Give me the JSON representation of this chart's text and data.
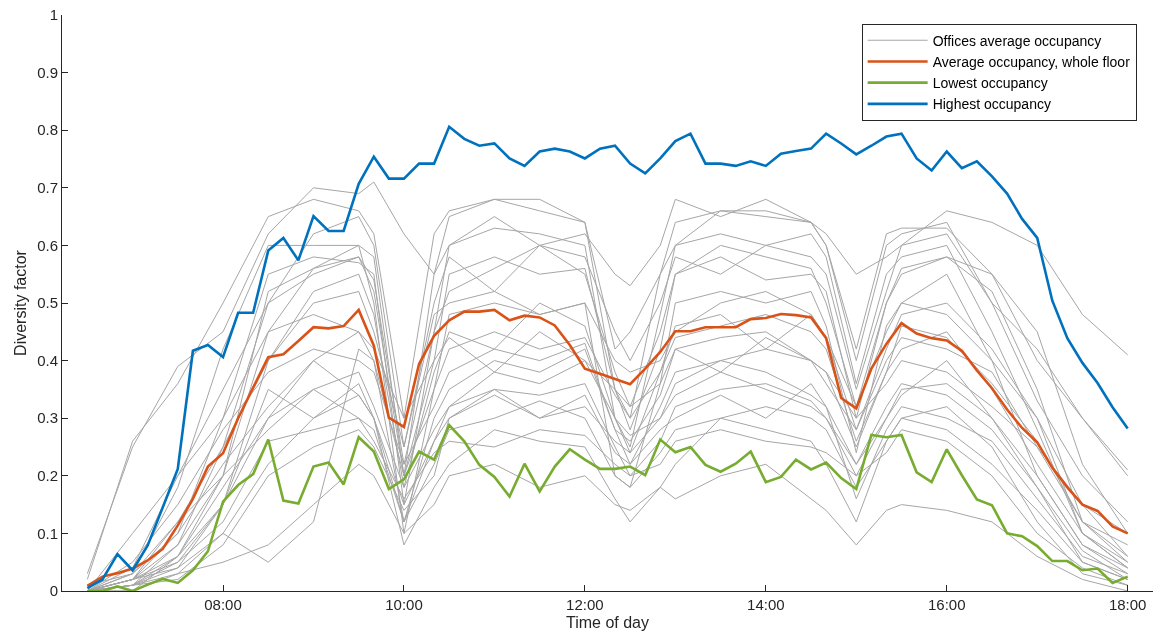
{
  "chart_data": {
    "type": "line",
    "xlabel": "Time of day",
    "ylabel": "Diversity factor",
    "x": [
      6.5,
      6.667,
      6.833,
      7,
      7.167,
      7.333,
      7.5,
      7.667,
      7.833,
      8,
      8.167,
      8.333,
      8.5,
      8.667,
      8.833,
      9,
      9.167,
      9.333,
      9.5,
      9.667,
      9.833,
      10,
      10.167,
      10.333,
      10.5,
      10.667,
      10.833,
      11,
      11.167,
      11.333,
      11.5,
      11.667,
      11.833,
      12,
      12.167,
      12.333,
      12.5,
      12.667,
      12.833,
      13,
      13.167,
      13.333,
      13.5,
      13.667,
      13.833,
      14,
      14.167,
      14.333,
      14.5,
      14.667,
      14.833,
      15,
      15.167,
      15.333,
      15.5,
      15.667,
      15.833,
      16,
      16.167,
      16.333,
      16.5,
      16.667,
      16.833,
      17,
      17.167,
      17.333,
      17.5,
      17.667,
      17.833,
      18
    ],
    "xlim": [
      6.22,
      18.28
    ],
    "xticks": [
      {
        "value": 8,
        "label": "08:00"
      },
      {
        "value": 10,
        "label": "10:00"
      },
      {
        "value": 12,
        "label": "12:00"
      },
      {
        "value": 14,
        "label": "14:00"
      },
      {
        "value": 16,
        "label": "16:00"
      },
      {
        "value": 18,
        "label": "18:00"
      }
    ],
    "ylim": [
      0,
      1
    ],
    "yticks": [
      0,
      0.1,
      0.2,
      0.3,
      0.4,
      0.5,
      0.6,
      0.7,
      0.8,
      0.9,
      1
    ],
    "legend": "top right",
    "line_style": "solid",
    "series": [
      {
        "name": "Offices average occupancy",
        "color": "#a6a6a6",
        "x": [
          6.5,
          7,
          7.5,
          8,
          8.5,
          9,
          9.5,
          9.667,
          10,
          10.333,
          10.5,
          11,
          11.5,
          12,
          12.333,
          12.5,
          12.833,
          13,
          13.5,
          14,
          14.5,
          14.667,
          15,
          15.333,
          15.5,
          16,
          16.5,
          17,
          17.5,
          18
        ],
        "values": [
          0.03,
          0.25,
          0.39,
          0.45,
          0.62,
          0.7,
          0.69,
          0.71,
          0.62,
          0.55,
          0.6,
          0.65,
          0.6,
          0.62,
          0.55,
          0.53,
          0.6,
          0.68,
          0.65,
          0.68,
          0.64,
          0.62,
          0.55,
          0.58,
          0.6,
          0.66,
          0.64,
          0.6,
          0.48,
          0.41
        ]
      },
      {
        "color": "#a6a6a6",
        "x": [
          6.5,
          7,
          7.5,
          8,
          8.5,
          9,
          9.5,
          9.667,
          10,
          10.333,
          10.5,
          11,
          11.5,
          12,
          12.333,
          12.5,
          12.833,
          13,
          13.5,
          14,
          14.5,
          14.667,
          15,
          15.333,
          15.5,
          16,
          16.5,
          17,
          17.5,
          18
        ],
        "values": [
          0.02,
          0.26,
          0.36,
          0.5,
          0.65,
          0.68,
          0.66,
          0.62,
          0.3,
          0.62,
          0.66,
          0.68,
          0.66,
          0.64,
          0.42,
          0.45,
          0.55,
          0.6,
          0.66,
          0.66,
          0.64,
          0.6,
          0.42,
          0.62,
          0.63,
          0.63,
          0.55,
          0.4,
          0.3,
          0.21
        ]
      },
      {
        "color": "#a6a6a6",
        "x": [
          6.5,
          7,
          7.5,
          8,
          8.5,
          9,
          9.5,
          9.667,
          10,
          10.333,
          10.5,
          11,
          11.5,
          12,
          12.333,
          12.5,
          12.833,
          13,
          13.5,
          14,
          14.5,
          14.667,
          15,
          15.333,
          15.5,
          16,
          16.5,
          17,
          17.5,
          18
        ],
        "values": [
          0.01,
          0.03,
          0.18,
          0.42,
          0.6,
          0.6,
          0.6,
          0.58,
          0.2,
          0.55,
          0.65,
          0.68,
          0.68,
          0.64,
          0.35,
          0.3,
          0.55,
          0.64,
          0.66,
          0.65,
          0.64,
          0.6,
          0.4,
          0.6,
          0.62,
          0.64,
          0.5,
          0.33,
          0.2,
          0.12
        ]
      },
      {
        "color": "#a6a6a6",
        "x": [
          6.5,
          7,
          7.5,
          8,
          8.5,
          9,
          9.5,
          9.667,
          10,
          10.333,
          10.5,
          11,
          11.5,
          12,
          12.333,
          12.5,
          12.833,
          13,
          13.5,
          14,
          14.5,
          14.667,
          15,
          15.333,
          15.5,
          16,
          16.5,
          17,
          17.5,
          18
        ],
        "values": [
          0,
          0.02,
          0.1,
          0.3,
          0.55,
          0.58,
          0.57,
          0.55,
          0.15,
          0.45,
          0.6,
          0.63,
          0.62,
          0.6,
          0.3,
          0.25,
          0.48,
          0.6,
          0.62,
          0.6,
          0.62,
          0.58,
          0.36,
          0.55,
          0.58,
          0.6,
          0.45,
          0.28,
          0.1,
          0.05
        ]
      },
      {
        "color": "#a6a6a6",
        "x": [
          6.5,
          7,
          7.5,
          8,
          8.5,
          9,
          9.5,
          9.667,
          10,
          10.333,
          10.5,
          11,
          11.5,
          12,
          12.333,
          12.5,
          12.833,
          13,
          13.5,
          14,
          14.5,
          14.667,
          15,
          15.333,
          15.5,
          16,
          16.5,
          17,
          17.5,
          18
        ],
        "values": [
          0,
          0.01,
          0.08,
          0.2,
          0.45,
          0.56,
          0.58,
          0.52,
          0.2,
          0.4,
          0.55,
          0.58,
          0.55,
          0.56,
          0.35,
          0.28,
          0.42,
          0.55,
          0.58,
          0.54,
          0.55,
          0.52,
          0.3,
          0.5,
          0.55,
          0.58,
          0.52,
          0.35,
          0.12,
          0.08
        ]
      },
      {
        "color": "#a6a6a6",
        "x": [
          6.5,
          7,
          7.5,
          8,
          8.5,
          9,
          9.5,
          9.667,
          10,
          10.333,
          10.5,
          11,
          11.5,
          12,
          12.333,
          12.5,
          12.833,
          13,
          13.5,
          14,
          14.5,
          14.667,
          15,
          15.333,
          15.5,
          16,
          16.5,
          17,
          17.5,
          18
        ],
        "values": [
          0,
          0.02,
          0.12,
          0.25,
          0.4,
          0.5,
          0.52,
          0.45,
          0.25,
          0.48,
          0.5,
          0.52,
          0.48,
          0.5,
          0.4,
          0.38,
          0.4,
          0.45,
          0.5,
          0.52,
          0.48,
          0.44,
          0.32,
          0.45,
          0.5,
          0.48,
          0.4,
          0.3,
          0.15,
          0.06
        ]
      },
      {
        "color": "#a6a6a6",
        "x": [
          6.5,
          7,
          7.5,
          8,
          8.5,
          9,
          9.5,
          9.667,
          10,
          10.333,
          10.5,
          11,
          11.5,
          12,
          12.333,
          12.5,
          12.833,
          13,
          13.5,
          14,
          14.5,
          14.667,
          15,
          15.333,
          15.5,
          16,
          16.5,
          17,
          17.5,
          18
        ],
        "values": [
          0,
          0.05,
          0.15,
          0.28,
          0.38,
          0.42,
          0.4,
          0.38,
          0.22,
          0.32,
          0.38,
          0.42,
          0.4,
          0.43,
          0.28,
          0.22,
          0.32,
          0.38,
          0.4,
          0.42,
          0.4,
          0.38,
          0.25,
          0.38,
          0.42,
          0.45,
          0.35,
          0.22,
          0.1,
          0.04
        ]
      },
      {
        "color": "#a6a6a6",
        "x": [
          6.5,
          7,
          7.5,
          8,
          8.5,
          9,
          9.5,
          9.667,
          10,
          10.333,
          10.5,
          11,
          11.5,
          12,
          12.333,
          12.5,
          12.833,
          13,
          13.5,
          14,
          14.5,
          14.667,
          15,
          15.333,
          15.5,
          16,
          16.5,
          17,
          17.5,
          18
        ],
        "values": [
          0,
          0.02,
          0.06,
          0.18,
          0.3,
          0.35,
          0.38,
          0.32,
          0.18,
          0.28,
          0.32,
          0.35,
          0.34,
          0.36,
          0.25,
          0.2,
          0.26,
          0.32,
          0.35,
          0.36,
          0.33,
          0.3,
          0.22,
          0.3,
          0.35,
          0.36,
          0.3,
          0.18,
          0.05,
          0.02
        ]
      },
      {
        "color": "#a6a6a6",
        "x": [
          6.5,
          7,
          7.5,
          8,
          8.5,
          9,
          9.5,
          9.667,
          10,
          10.333,
          10.5,
          11,
          11.5,
          12,
          12.333,
          12.5,
          12.833,
          13,
          13.5,
          14,
          14.5,
          14.667,
          15,
          15.333,
          15.5,
          16,
          16.5,
          17,
          17.5,
          18
        ],
        "values": [
          0,
          0.01,
          0.04,
          0.15,
          0.35,
          0.3,
          0.36,
          0.3,
          0.12,
          0.22,
          0.28,
          0.3,
          0.33,
          0.3,
          0.2,
          0.18,
          0.24,
          0.28,
          0.3,
          0.32,
          0.3,
          0.28,
          0.18,
          0.26,
          0.3,
          0.32,
          0.25,
          0.12,
          0.03,
          0.01
        ]
      },
      {
        "color": "#a6a6a6",
        "x": [
          6.5,
          7,
          7.5,
          8,
          8.5,
          9,
          9.5,
          9.667,
          10,
          10.333,
          10.5,
          11,
          11.5,
          12,
          12.333,
          12.5,
          12.833,
          13,
          13.5,
          14,
          14.5,
          14.667,
          15,
          15.333,
          15.5,
          16,
          16.5,
          17,
          17.5,
          18
        ],
        "values": [
          0,
          0.01,
          0.05,
          0.12,
          0.26,
          0.28,
          0.3,
          0.26,
          0.16,
          0.24,
          0.26,
          0.25,
          0.28,
          0.27,
          0.22,
          0.2,
          0.22,
          0.26,
          0.28,
          0.26,
          0.25,
          0.24,
          0.2,
          0.24,
          0.28,
          0.26,
          0.2,
          0.1,
          0.04,
          0.01
        ]
      },
      {
        "color": "#a6a6a6",
        "x": [
          6.5,
          7,
          7.5,
          8,
          8.5,
          9,
          9.5,
          9.667,
          10,
          10.333,
          10.5,
          11,
          11.5,
          12,
          12.333,
          12.5,
          12.833,
          13,
          13.5,
          14,
          14.5,
          14.667,
          15,
          15.333,
          15.5,
          16,
          16.5,
          17,
          17.5,
          18
        ],
        "values": [
          0,
          0.01,
          0.03,
          0.05,
          0.08,
          0.15,
          0.22,
          0.2,
          0.1,
          0.15,
          0.2,
          0.22,
          0.18,
          0.2,
          0.15,
          0.14,
          0.18,
          0.16,
          0.2,
          0.22,
          0.16,
          0.14,
          0.08,
          0.14,
          0.15,
          0.14,
          0.12,
          0.06,
          0.02,
          0
        ]
      },
      {
        "color": "#a6a6a6",
        "x": [
          6.5,
          7,
          7.5,
          8,
          8.5,
          9,
          9.5,
          9.667,
          10,
          10.333,
          10.5,
          11,
          11.5,
          12,
          12.333,
          12.5,
          12.833,
          13,
          13.5,
          14,
          14.5,
          14.667,
          15,
          15.333,
          15.5,
          16,
          16.5,
          17,
          17.5,
          18
        ],
        "values": [
          0,
          0.02,
          0.04,
          0.1,
          0.05,
          0.12,
          0.42,
          0.4,
          0.12,
          0.3,
          0.35,
          0.4,
          0.38,
          0.42,
          0.28,
          0.26,
          0.34,
          0.42,
          0.44,
          0.45,
          0.4,
          0.36,
          0.28,
          0.4,
          0.44,
          0.42,
          0.38,
          0.25,
          0.12,
          0.06
        ]
      },
      {
        "color": "#a6a6a6",
        "x": [
          6.5,
          7,
          7.5,
          8,
          8.5,
          9,
          9.5,
          9.667,
          10,
          10.333,
          10.5,
          11,
          11.5,
          12,
          12.333,
          12.5,
          12.833,
          13,
          13.5,
          14,
          14.5,
          14.667,
          15,
          15.333,
          15.5,
          16,
          16.5,
          17,
          17.5,
          18
        ],
        "values": [
          0,
          0,
          0.06,
          0.2,
          0.52,
          0.56,
          0.6,
          0.5,
          0.1,
          0.35,
          0.48,
          0.5,
          0.48,
          0.5,
          0.2,
          0.18,
          0.36,
          0.5,
          0.52,
          0.5,
          0.52,
          0.46,
          0.24,
          0.46,
          0.5,
          0.55,
          0.4,
          0.2,
          0.08,
          0.03
        ]
      },
      {
        "color": "#a6a6a6",
        "x": [
          6.5,
          7,
          7.5,
          8,
          8.5,
          9,
          9.5,
          9.667,
          10,
          10.333,
          10.5,
          11,
          11.5,
          12,
          12.333,
          12.5,
          12.833,
          13,
          13.5,
          14,
          14.5,
          14.667,
          15,
          15.333,
          15.5,
          16,
          16.5,
          17,
          17.5,
          18
        ],
        "values": [
          0,
          0.03,
          0.1,
          0.22,
          0.32,
          0.4,
          0.34,
          0.3,
          0.08,
          0.18,
          0.22,
          0.28,
          0.26,
          0.25,
          0.16,
          0.12,
          0.18,
          0.22,
          0.3,
          0.28,
          0.26,
          0.22,
          0.12,
          0.26,
          0.3,
          0.28,
          0.22,
          0.14,
          0.05,
          0.02
        ]
      },
      {
        "color": "#a6a6a6",
        "x": [
          6.5,
          7,
          7.5,
          8,
          8.5,
          9,
          9.5,
          9.667,
          10,
          10.333,
          10.5,
          11,
          11.5,
          12,
          12.333,
          12.5,
          12.833,
          13,
          13.5,
          14,
          14.5,
          14.667,
          15,
          15.333,
          15.5,
          16,
          16.5,
          17,
          17.5,
          18
        ],
        "values": [
          0,
          0.04,
          0.2,
          0.35,
          0.5,
          0.62,
          0.65,
          0.6,
          0.25,
          0.5,
          0.58,
          0.52,
          0.6,
          0.58,
          0.45,
          0.4,
          0.5,
          0.58,
          0.55,
          0.6,
          0.58,
          0.55,
          0.35,
          0.52,
          0.6,
          0.62,
          0.5,
          0.42,
          0.3,
          0.2
        ]
      },
      {
        "color": "#a6a6a6",
        "x": [
          6.5,
          7,
          7.5,
          8,
          8.5,
          9,
          9.5,
          9.667,
          10,
          10.333,
          10.5,
          11,
          11.5,
          12,
          12.333,
          12.5,
          12.833,
          13,
          13.5,
          14,
          14.5,
          14.667,
          15,
          15.333,
          15.5,
          16,
          16.5,
          17,
          17.5,
          18
        ],
        "values": [
          0,
          0.1,
          0.2,
          0.3,
          0.45,
          0.48,
          0.45,
          0.42,
          0.3,
          0.4,
          0.44,
          0.38,
          0.45,
          0.4,
          0.35,
          0.32,
          0.36,
          0.42,
          0.38,
          0.44,
          0.4,
          0.38,
          0.3,
          0.36,
          0.4,
          0.38,
          0.32,
          0.25,
          0.15,
          0.1
        ]
      },
      {
        "color": "#a6a6a6",
        "x": [
          6.5,
          7,
          7.5,
          8,
          8.5,
          9,
          9.5,
          9.667,
          10,
          10.333,
          10.5,
          11,
          11.5,
          12,
          12.333,
          12.5,
          12.833,
          13,
          13.5,
          14,
          14.5,
          14.667,
          15,
          15.333,
          15.5,
          16,
          16.5,
          17,
          17.5,
          18
        ],
        "values": [
          0,
          0.02,
          0.05,
          0.15,
          0.4,
          0.52,
          0.55,
          0.48,
          0.18,
          0.38,
          0.45,
          0.42,
          0.5,
          0.46,
          0.3,
          0.24,
          0.38,
          0.46,
          0.48,
          0.42,
          0.48,
          0.44,
          0.28,
          0.42,
          0.48,
          0.5,
          0.42,
          0.3,
          0.1,
          0.04
        ]
      },
      {
        "color": "#a6a6a6",
        "x": [
          6.5,
          7,
          7.5,
          8,
          8.5,
          9,
          9.5,
          9.667,
          10,
          10.333,
          10.5,
          11,
          11.5,
          12,
          12.333,
          12.5,
          12.833,
          13,
          13.5,
          14,
          14.5,
          14.667,
          15,
          15.333,
          15.5,
          16,
          16.5,
          17,
          17.5,
          18
        ],
        "values": [
          0,
          0.01,
          0.02,
          0.08,
          0.2,
          0.25,
          0.28,
          0.25,
          0.14,
          0.2,
          0.3,
          0.35,
          0.3,
          0.34,
          0.24,
          0.22,
          0.28,
          0.3,
          0.34,
          0.3,
          0.36,
          0.32,
          0.16,
          0.28,
          0.32,
          0.3,
          0.26,
          0.16,
          0.06,
          0.03
        ]
      },
      {
        "color": "#a6a6a6",
        "x": [
          6.5,
          7,
          7.5,
          8,
          8.5,
          9,
          9.5,
          9.667,
          10,
          10.333,
          10.5,
          11,
          11.5,
          12,
          12.333,
          12.5,
          12.833,
          13,
          13.5,
          14,
          14.5,
          14.667,
          15,
          15.333,
          15.5,
          16,
          16.5,
          17,
          17.5,
          18
        ],
        "values": [
          0,
          0.02,
          0.08,
          0.25,
          0.5,
          0.55,
          0.58,
          0.54,
          0.22,
          0.45,
          0.52,
          0.56,
          0.6,
          0.55,
          0.38,
          0.32,
          0.45,
          0.55,
          0.6,
          0.58,
          0.56,
          0.5,
          0.32,
          0.5,
          0.56,
          0.58,
          0.55,
          0.45,
          0.22,
          0.1
        ]
      },
      {
        "color": "#a6a6a6",
        "x": [
          6.5,
          7,
          7.5,
          8,
          8.5,
          9,
          9.5,
          9.667,
          10,
          10.333,
          10.5,
          11,
          11.5,
          12,
          12.333,
          12.5,
          12.833,
          13,
          13.5,
          14,
          14.5,
          14.667,
          15,
          15.333,
          15.5,
          16,
          16.5,
          17,
          17.5,
          18
        ],
        "values": [
          0,
          0.03,
          0.12,
          0.2,
          0.28,
          0.35,
          0.3,
          0.28,
          0.12,
          0.26,
          0.3,
          0.34,
          0.3,
          0.32,
          0.26,
          0.24,
          0.3,
          0.34,
          0.38,
          0.35,
          0.32,
          0.3,
          0.2,
          0.3,
          0.34,
          0.4,
          0.3,
          0.2,
          0.08,
          0.04
        ]
      },
      {
        "color": "#a6a6a6",
        "x": [
          6.5,
          7,
          7.5,
          8,
          8.5,
          9,
          9.5,
          9.667,
          10,
          10.333,
          10.5,
          11,
          11.5,
          12,
          12.333,
          12.5,
          12.833,
          13,
          13.5,
          14,
          14.5,
          14.667,
          15,
          15.333,
          15.5,
          16,
          16.5,
          17,
          17.5,
          18
        ],
        "values": [
          0,
          0.01,
          0.06,
          0.15,
          0.3,
          0.4,
          0.45,
          0.4,
          0.2,
          0.35,
          0.42,
          0.45,
          0.42,
          0.44,
          0.34,
          0.3,
          0.38,
          0.44,
          0.46,
          0.48,
          0.45,
          0.42,
          0.26,
          0.38,
          0.46,
          0.44,
          0.36,
          0.26,
          0.12,
          0.05
        ]
      },
      {
        "color": "#a6a6a6",
        "x": [
          6.5,
          7,
          7.5,
          8,
          8.5,
          9,
          9.5,
          9.667,
          10,
          10.333,
          10.5,
          11,
          11.5,
          12,
          12.333,
          12.5,
          12.833,
          13,
          13.5,
          14,
          14.5,
          14.667,
          15,
          15.333,
          15.5,
          16,
          16.5,
          17,
          17.5,
          18
        ],
        "values": [
          0,
          0,
          0.03,
          0.1,
          0.22,
          0.3,
          0.34,
          0.3,
          0.15,
          0.26,
          0.32,
          0.38,
          0.36,
          0.4,
          0.3,
          0.27,
          0.3,
          0.36,
          0.4,
          0.38,
          0.34,
          0.32,
          0.22,
          0.32,
          0.36,
          0.34,
          0.28,
          0.18,
          0.07,
          0.02
        ]
      },
      {
        "name": "Average occupancy, whole floor",
        "color": "#d95319",
        "values": [
          0.009,
          0.025,
          0.031,
          0.039,
          0.053,
          0.073,
          0.114,
          0.16,
          0.216,
          0.239,
          0.3,
          0.353,
          0.406,
          0.411,
          0.434,
          0.458,
          0.456,
          0.46,
          0.488,
          0.426,
          0.301,
          0.285,
          0.394,
          0.443,
          0.47,
          0.485,
          0.485,
          0.488,
          0.47,
          0.478,
          0.475,
          0.461,
          0.427,
          0.386,
          0.377,
          0.368,
          0.359,
          0.386,
          0.415,
          0.451,
          0.451,
          0.458,
          0.458,
          0.458,
          0.472,
          0.474,
          0.481,
          0.479,
          0.475,
          0.439,
          0.335,
          0.317,
          0.386,
          0.429,
          0.465,
          0.447,
          0.439,
          0.435,
          0.417,
          0.383,
          0.352,
          0.315,
          0.283,
          0.258,
          0.214,
          0.18,
          0.15,
          0.139,
          0.112,
          0.1
        ]
      },
      {
        "name": "Lowest occupancy",
        "color": "#77ac30",
        "values": [
          0,
          0,
          0.008,
          0,
          0.011,
          0.021,
          0.014,
          0.036,
          0.069,
          0.155,
          0.184,
          0.203,
          0.263,
          0.157,
          0.152,
          0.216,
          0.223,
          0.185,
          0.267,
          0.242,
          0.177,
          0.194,
          0.242,
          0.228,
          0.288,
          0.26,
          0.219,
          0.198,
          0.164,
          0.221,
          0.173,
          0.216,
          0.246,
          0.228,
          0.212,
          0.212,
          0.216,
          0.201,
          0.263,
          0.241,
          0.25,
          0.219,
          0.207,
          0.221,
          0.242,
          0.189,
          0.198,
          0.228,
          0.211,
          0.223,
          0.196,
          0.177,
          0.271,
          0.267,
          0.271,
          0.206,
          0.189,
          0.246,
          0.201,
          0.159,
          0.149,
          0.1,
          0.095,
          0.078,
          0.052,
          0.052,
          0.036,
          0.039,
          0.014,
          0.025
        ]
      },
      {
        "name": "Highest occupancy",
        "color": "#0072bd",
        "values": [
          0.005,
          0.02,
          0.064,
          0.036,
          0.079,
          0.145,
          0.212,
          0.417,
          0.427,
          0.406,
          0.483,
          0.483,
          0.591,
          0.613,
          0.574,
          0.651,
          0.625,
          0.625,
          0.707,
          0.754,
          0.716,
          0.716,
          0.742,
          0.742,
          0.806,
          0.785,
          0.773,
          0.777,
          0.751,
          0.738,
          0.763,
          0.768,
          0.763,
          0.751,
          0.768,
          0.773,
          0.742,
          0.725,
          0.751,
          0.781,
          0.794,
          0.742,
          0.742,
          0.738,
          0.746,
          0.738,
          0.759,
          0.764,
          0.768,
          0.794,
          0.777,
          0.758,
          0.773,
          0.789,
          0.794,
          0.751,
          0.73,
          0.763,
          0.734,
          0.746,
          0.72,
          0.69,
          0.646,
          0.613,
          0.504,
          0.439,
          0.396,
          0.361,
          0.319,
          0.282
        ]
      }
    ]
  }
}
